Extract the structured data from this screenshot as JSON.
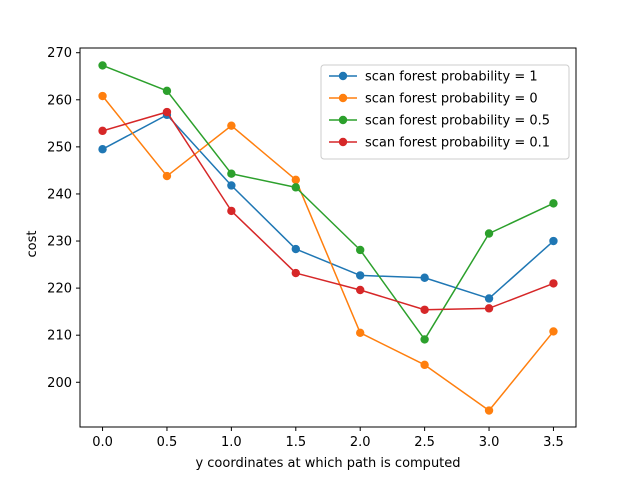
{
  "chart_data": {
    "type": "line",
    "title": "",
    "xlabel": "y coordinates at which path is computed",
    "ylabel": "cost",
    "x": [
      0.0,
      0.5,
      1.0,
      1.5,
      2.0,
      2.5,
      3.0,
      3.5
    ],
    "xticks": [
      "0.0",
      "0.5",
      "1.0",
      "1.5",
      "2.0",
      "2.5",
      "3.0",
      "3.5"
    ],
    "yticks": [
      "200",
      "210",
      "220",
      "230",
      "240",
      "250",
      "260",
      "270"
    ],
    "xlim": [
      -0.175,
      3.675
    ],
    "ylim": [
      190.5,
      271.0
    ],
    "grid": false,
    "legend_position": "top-right",
    "series": [
      {
        "name": "scan forest probability = 1",
        "color": "#1f77b4",
        "values": [
          249.5,
          256.8,
          241.8,
          228.3,
          222.7,
          222.2,
          217.8,
          230.0
        ]
      },
      {
        "name": "scan forest probability = 0",
        "color": "#ff7f0e",
        "values": [
          260.8,
          243.8,
          254.5,
          243.0,
          210.5,
          203.7,
          194.0,
          210.8
        ]
      },
      {
        "name": "scan forest probability = 0.5",
        "color": "#2ca02c",
        "values": [
          267.3,
          261.9,
          244.3,
          241.4,
          228.1,
          209.1,
          231.6,
          238.0
        ]
      },
      {
        "name": "scan forest probability = 0.1",
        "color": "#d62728",
        "values": [
          253.4,
          257.4,
          236.4,
          223.2,
          219.6,
          215.4,
          215.7,
          221.0
        ]
      }
    ]
  }
}
